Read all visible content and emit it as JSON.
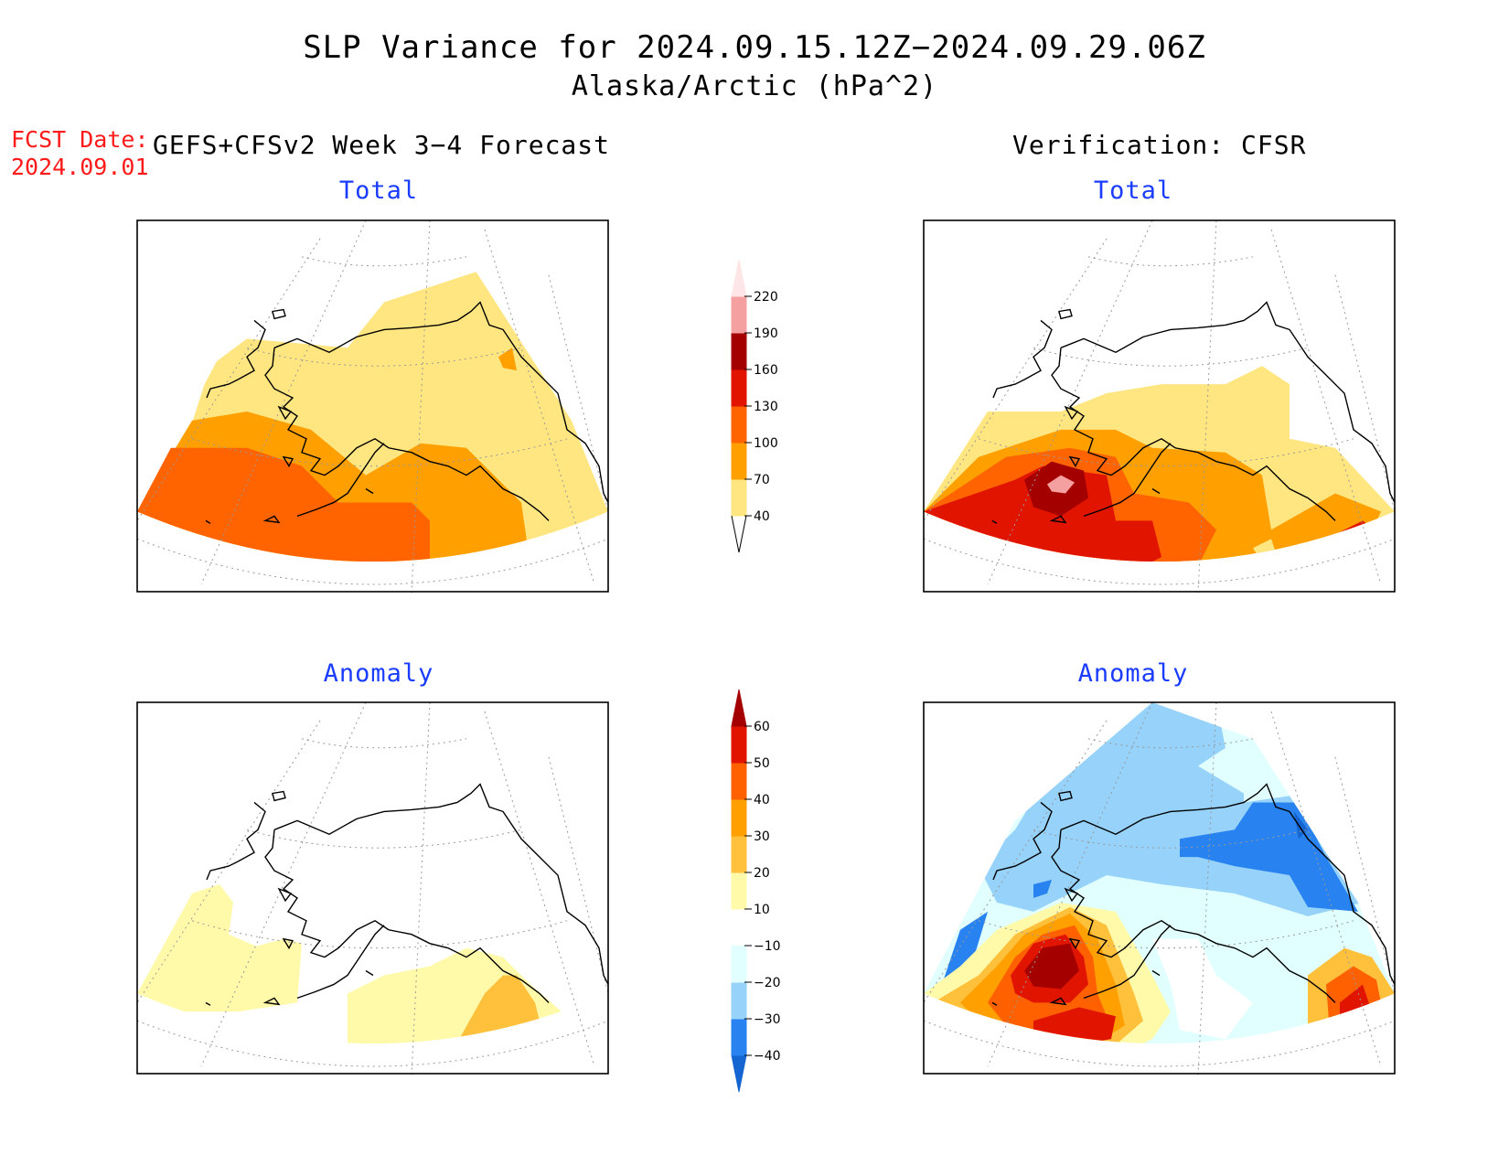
{
  "title": "SLP Variance for 2024.09.15.12Z−2024.09.29.06Z",
  "subtitle": "Alaska/Arctic (hPa^2)",
  "forecast": {
    "fcst_label": "FCST Date:",
    "fcst_date": "2024.09.01",
    "header": "GEFS+CFSv2 Week 3−4 Forecast"
  },
  "verification": {
    "header": "Verification: CFSR"
  },
  "panels": {
    "fcst_total": {
      "title": "Total"
    },
    "fcst_anomaly": {
      "title": "Anomaly"
    },
    "verif_total": {
      "title": "Total"
    },
    "verif_anomaly": {
      "title": "Anomaly"
    }
  },
  "colorbars": {
    "total": {
      "labels": [
        "40",
        "70",
        "100",
        "130",
        "160",
        "190",
        "220"
      ],
      "colors": [
        "#ffffff",
        "#ffe680",
        "#ffa000",
        "#ff6400",
        "#e11400",
        "#a50000",
        "#f5a0a0",
        "#ffe6e6"
      ]
    },
    "anomaly": {
      "labels": [
        "−40",
        "−30",
        "−20",
        "−10",
        "10",
        "20",
        "30",
        "40",
        "50",
        "60"
      ],
      "colors": [
        "#1464d2",
        "#2882f0",
        "#96d2fa",
        "#e1ffff",
        "#ffffff",
        "#fffaaa",
        "#ffc03c",
        "#ffa000",
        "#ff6000",
        "#e11400",
        "#a50000"
      ]
    }
  },
  "colors": {
    "title_blue": "#1a3cff",
    "fcst_red": "#ff1a1a"
  }
}
